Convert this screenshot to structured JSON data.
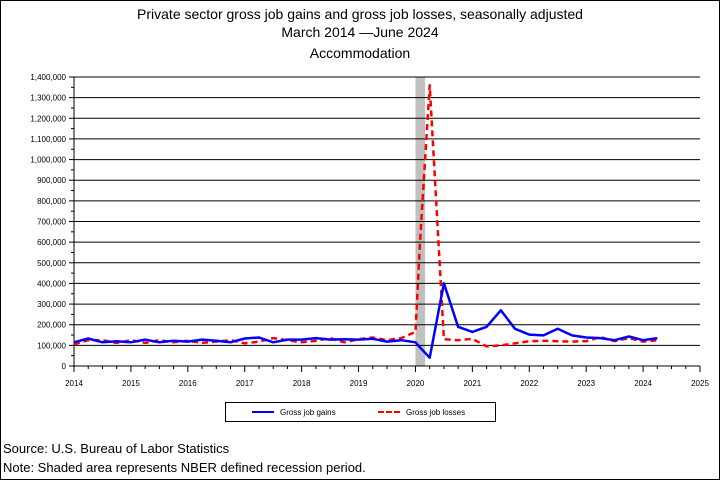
{
  "title": "Private sector gross job gains and gross job losses, seasonally adjusted",
  "subtitle": "March 2014 —June 2024",
  "industry": "Accommodation",
  "source": "Source: U.S. Bureau of Labor Statistics",
  "note": "Note: Shaded area represents NBER defined recession period.",
  "legend": {
    "gains_label": "Gross job gains",
    "losses_label": "Gross job losses"
  },
  "chart_data": {
    "type": "line",
    "title": "Private sector gross job gains and gross job losses, seasonally adjusted",
    "xlim": [
      2014,
      2025
    ],
    "ylim": [
      0,
      1400000
    ],
    "x_ticks": [
      "2014",
      "2015",
      "2016",
      "2017",
      "2018",
      "2019",
      "2020",
      "2021",
      "2022",
      "2023",
      "2024",
      "2025"
    ],
    "y_ticks": [
      "0",
      "100,000",
      "200,000",
      "300,000",
      "400,000",
      "500,000",
      "600,000",
      "700,000",
      "800,000",
      "900,000",
      "1,000,000",
      "1,100,000",
      "1,200,000",
      "1,300,000",
      "1,400,000"
    ],
    "grid": "horizontal",
    "legend_position": "bottom",
    "recession": {
      "start": 2020.0,
      "end": 2020.17,
      "color": "#c0c0c0"
    },
    "x": [
      2014.0,
      2014.25,
      2014.5,
      2014.75,
      2015.0,
      2015.25,
      2015.5,
      2015.75,
      2016.0,
      2016.25,
      2016.5,
      2016.75,
      2017.0,
      2017.25,
      2017.5,
      2017.75,
      2018.0,
      2018.25,
      2018.5,
      2018.75,
      2019.0,
      2019.25,
      2019.5,
      2019.75,
      2020.0,
      2020.08,
      2020.25,
      2020.5,
      2020.75,
      2021.0,
      2021.25,
      2021.5,
      2021.75,
      2022.0,
      2022.25,
      2022.5,
      2022.75,
      2023.0,
      2023.25,
      2023.5,
      2023.75,
      2024.0,
      2024.25
    ],
    "series": [
      {
        "name": "Gross job gains",
        "color": "#0000ff",
        "style": "solid",
        "values": [
          115000,
          133000,
          115000,
          120000,
          115000,
          128000,
          115000,
          122000,
          118000,
          128000,
          122000,
          115000,
          133000,
          138000,
          115000,
          128000,
          128000,
          135000,
          128000,
          130000,
          128000,
          132000,
          118000,
          125000,
          115000,
          90000,
          40000,
          400000,
          190000,
          165000,
          190000,
          270000,
          180000,
          152000,
          148000,
          180000,
          148000,
          138000,
          135000,
          125000,
          143000,
          125000,
          135000
        ]
      },
      {
        "name": "Gross job losses",
        "color": "#ff0000",
        "style": "dashed",
        "values": [
          105000,
          125000,
          125000,
          112000,
          125000,
          112000,
          125000,
          115000,
          122000,
          112000,
          118000,
          125000,
          110000,
          118000,
          135000,
          125000,
          115000,
          122000,
          135000,
          115000,
          130000,
          138000,
          125000,
          135000,
          165000,
          600000,
          1360000,
          130000,
          125000,
          132000,
          95000,
          100000,
          110000,
          120000,
          122000,
          120000,
          118000,
          120000,
          140000,
          120000,
          135000,
          118000,
          125000
        ]
      }
    ]
  }
}
